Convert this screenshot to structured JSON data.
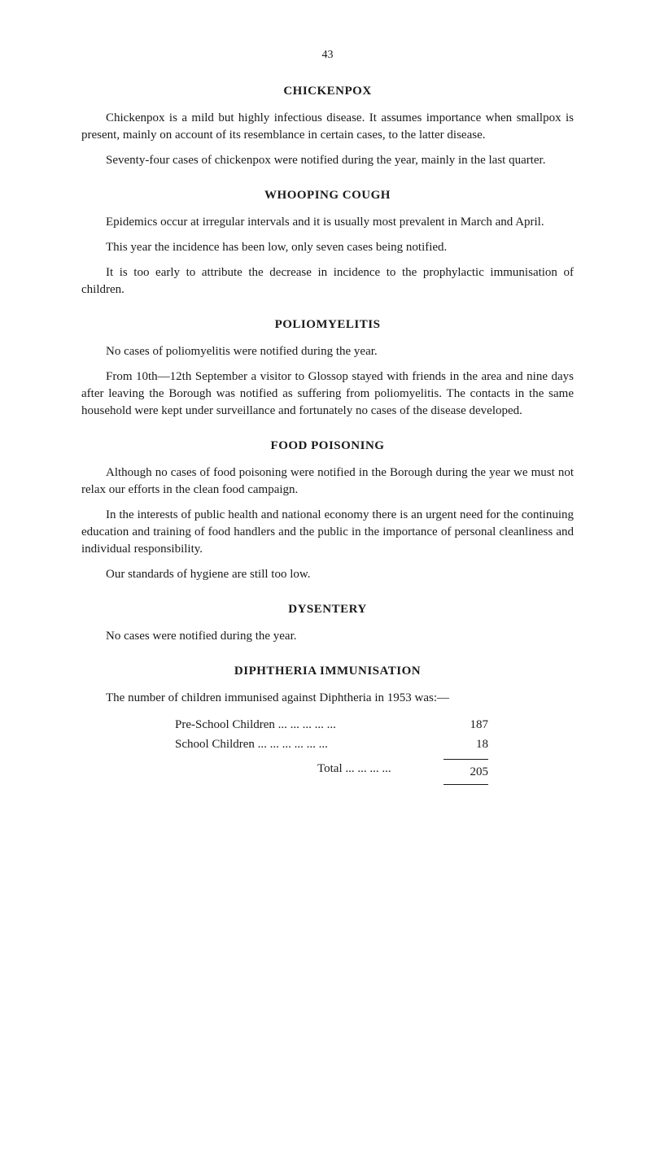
{
  "page_number": "43",
  "sections": {
    "chickenpox": {
      "heading": "CHICKENPOX",
      "para1": "Chickenpox is a mild but highly infectious disease. It assumes importance when smallpox is present, mainly on account of its resemblance in certain cases, to the latter disease.",
      "para2": "Seventy-four cases of chickenpox were notified during the year, mainly in the last quarter."
    },
    "whooping_cough": {
      "heading": "WHOOPING COUGH",
      "para1": "Epidemics occur at irregular intervals and it is usually most prevalent in March and April.",
      "para2": "This year the incidence has been low, only seven cases being notified.",
      "para3": "It is too early to attribute the decrease in incidence to the prophylactic immunisation of children."
    },
    "poliomyelitis": {
      "heading": "POLIOMYELITIS",
      "para1": "No cases of poliomyelitis were notified during the year.",
      "para2": "From 10th—12th September a visitor to Glossop stayed with friends in the area and nine days after leaving the Borough was notified as suffering from poliomyelitis. The contacts in the same household were kept under surveillance and fortunately no cases of the disease developed."
    },
    "food_poisoning": {
      "heading": "FOOD POISONING",
      "para1": "Although no cases of food poisoning were notified in the Borough during the year we must not relax our efforts in the clean food campaign.",
      "para2": "In the interests of public health and national economy there is an urgent need for the continuing education and training of food handlers and the public in the importance of personal cleanliness and individual responsibility.",
      "para3": "Our standards of hygiene are still too low."
    },
    "dysentery": {
      "heading": "DYSENTERY",
      "para1": "No cases were notified during the year."
    },
    "diphtheria": {
      "heading": "DIPHTHERIA IMMUNISATION",
      "intro": "The number of children immunised against Diphtheria in 1953 was:—",
      "rows": [
        {
          "label": "Pre-School Children ...  ...  ...  ...  ...",
          "value": "187"
        },
        {
          "label": "School Children ...  ...  ...  ...  ...  ...",
          "value": "18"
        }
      ],
      "total": {
        "label": "Total ...  ...  ...  ...",
        "value": "205"
      }
    }
  }
}
